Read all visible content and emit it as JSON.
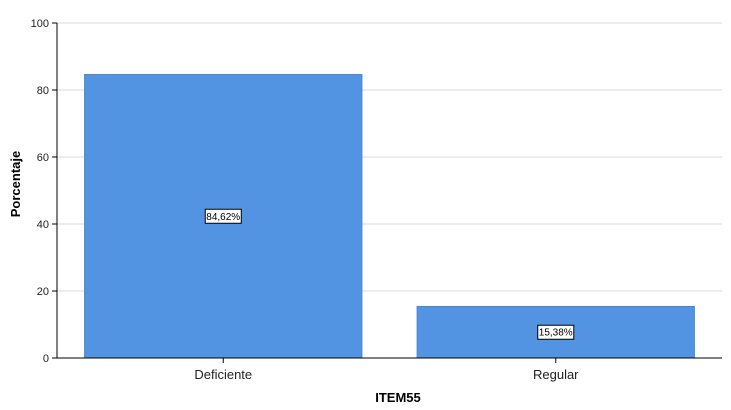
{
  "chart_data": {
    "type": "bar",
    "categories": [
      "Deficiente",
      "Regular"
    ],
    "values": [
      84.62,
      15.38
    ],
    "data_labels": [
      "84,62%",
      "15,38%"
    ],
    "xlabel": "ITEM55",
    "ylabel": "Porcentaje",
    "ylim": [
      0,
      100
    ],
    "yticks": [
      0,
      20,
      40,
      60,
      80,
      100
    ],
    "ytick_labels": [
      "0",
      "20",
      "40",
      "60",
      "80",
      "100"
    ],
    "grid": "horizontal",
    "legend": "none",
    "colors": {
      "bar": "#5294e2",
      "bar_edge": "#4a86cf",
      "grid": "#d9d9d9",
      "axis": "#000000"
    }
  }
}
